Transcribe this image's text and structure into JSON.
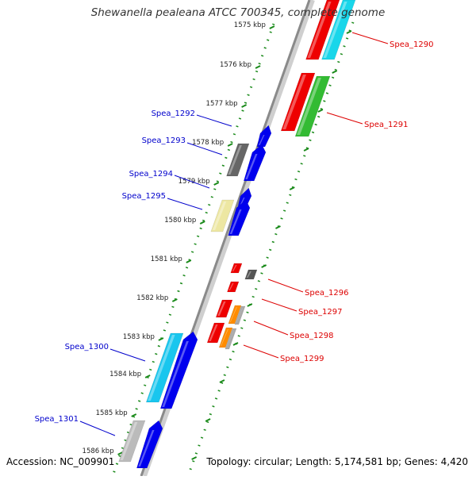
{
  "title": "Shewanella pealeana ATCC 700345, complete genome",
  "footer": {
    "accession": "Accession: NC_009901",
    "summary": "Topology: circular; Length: 5,174,581 bp; Genes: 4,420"
  },
  "colors": {
    "left_labels": "#0000cc",
    "right_labels": "#dd0000",
    "ruler_ticks": "#1a8a1a",
    "backbone": "#888888"
  },
  "ruler": {
    "ticks": [
      {
        "kbp": 1575,
        "label": "1575 kbp"
      },
      {
        "kbp": 1576,
        "label": "1576 kbp"
      },
      {
        "kbp": 1577,
        "label": "1577 kbp"
      },
      {
        "kbp": 1578,
        "label": "1578 kbp"
      },
      {
        "kbp": 1579,
        "label": "1579 kbp"
      },
      {
        "kbp": 1580,
        "label": "1580 kbp"
      },
      {
        "kbp": 1581,
        "label": "1581 kbp"
      },
      {
        "kbp": 1582,
        "label": "1582 kbp"
      },
      {
        "kbp": 1583,
        "label": "1583 kbp"
      },
      {
        "kbp": 1584,
        "label": "1584 kbp"
      },
      {
        "kbp": 1585,
        "label": "1585 kbp"
      },
      {
        "kbp": 1586,
        "label": "1586 kbp"
      }
    ]
  },
  "genes_left": [
    {
      "name": "Spea_1292"
    },
    {
      "name": "Spea_1293"
    },
    {
      "name": "Spea_1294"
    },
    {
      "name": "Spea_1295"
    },
    {
      "name": "Spea_1300"
    },
    {
      "name": "Spea_1301"
    }
  ],
  "genes_right": [
    {
      "name": "Spea_1290"
    },
    {
      "name": "Spea_1291"
    },
    {
      "name": "Spea_1296"
    },
    {
      "name": "Spea_1297"
    },
    {
      "name": "Spea_1298"
    },
    {
      "name": "Spea_1299"
    }
  ]
}
